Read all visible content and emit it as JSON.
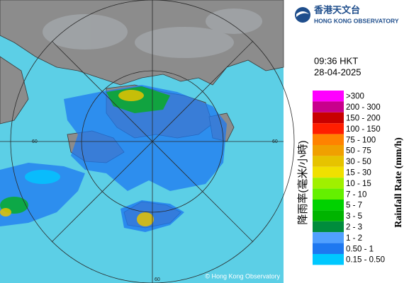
{
  "logo": {
    "name_zh": "香港天文台",
    "name_en": "HONG KONG OBSERVATORY"
  },
  "time": "09:36 HKT",
  "date": "28-04-2025",
  "map": {
    "ring_labels": [
      "60",
      "60",
      "60"
    ],
    "copyright": "© Hong Kong Observatory"
  },
  "legend": {
    "title_zh": "降雨率(毫米/小時)",
    "title_en": "Rainfall Rate (mm/h)",
    "items": [
      {
        "label": ">300",
        "color": "#ff00ff"
      },
      {
        "label": "200 - 300",
        "color": "#c8008c"
      },
      {
        "label": "150 - 200",
        "color": "#c80000"
      },
      {
        "label": "100 - 150",
        "color": "#ff1e00"
      },
      {
        "label": "75 - 100",
        "color": "#ff8200"
      },
      {
        "label": "50 - 75",
        "color": "#f0a000"
      },
      {
        "label": "30 - 50",
        "color": "#e6c300"
      },
      {
        "label": "15 - 30",
        "color": "#f0e000"
      },
      {
        "label": "10 - 15",
        "color": "#a0f000"
      },
      {
        "label": "7 - 10",
        "color": "#64f000"
      },
      {
        "label": "5 - 7",
        "color": "#00d200"
      },
      {
        "label": "3 - 5",
        "color": "#00b400"
      },
      {
        "label": "2 - 3",
        "color": "#008c3c"
      },
      {
        "label": "1 - 2",
        "color": "#50a0ff"
      },
      {
        "label": "0.50 - 1",
        "color": "#1e78f0"
      },
      {
        "label": "0.15 - 0.50",
        "color": "#00c8ff"
      }
    ]
  }
}
